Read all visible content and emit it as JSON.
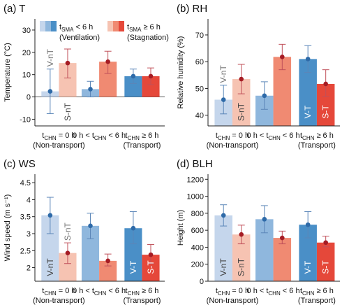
{
  "legend": {
    "ventilation": {
      "name": "t",
      "sub": "SMA",
      "rel": " < 6 h",
      "note": "(Ventilation)"
    },
    "stagnation": {
      "name": "t",
      "sub": "SMA",
      "rel": " ≥ 6 h",
      "note": "(Stagnation)"
    }
  },
  "x_groups": [
    {
      "l1_pre": "t",
      "l1_sub": "CHN",
      "l1_post": " = 0 h",
      "l2": "(Non-transport)"
    },
    {
      "l1_pre": "0 h < t",
      "l1_sub": "CHN",
      "l1_post": " < 6 h",
      "l2": ""
    },
    {
      "l1_pre": "t",
      "l1_sub": "CHN",
      "l1_post": " ≥ 6 h",
      "l2": "(Transport)"
    }
  ],
  "colors": {
    "vent_light": "#c5d6ec",
    "vent_mid": "#8fb7dd",
    "vent_dark": "#4a8fc7",
    "stag_light": "#f6c3b2",
    "stag_mid": "#f08a72",
    "stag_dark": "#e5483a",
    "vent_marker": "#2e6aa8",
    "stag_marker": "#a51c24",
    "vent_err": "#5b86b8",
    "stag_err": "#c0505a"
  },
  "chart_data": [
    {
      "type": "bar",
      "title": "(a) T",
      "ylabel": "Temperature (°C)",
      "ylim": [
        -13,
        35
      ],
      "yticks": [
        -10,
        0,
        10,
        20,
        30
      ],
      "categories": [
        "tCHN = 0 h (Non-transport)",
        "0 h < tCHN < 6 h",
        "tCHN ≥ 6 h (Transport)"
      ],
      "series": [
        {
          "name": "tSMA < 6 h (Ventilation)",
          "values": [
            2.5,
            3.5,
            9.3
          ],
          "lower": [
            -7.5,
            0.0,
            6.0
          ],
          "upper": [
            12.5,
            7.0,
            12.5
          ]
        },
        {
          "name": "tSMA ≥ 6 h (Stagnation)",
          "values": [
            15.2,
            15.8,
            9.3
          ],
          "lower": [
            8.5,
            10.5,
            5.5
          ],
          "upper": [
            21.5,
            20.5,
            13.0
          ]
        }
      ],
      "bar_labels": [
        {
          "text": "V-nT",
          "group": 0,
          "series": 0,
          "pos": "above"
        },
        {
          "text": "S-nT",
          "group": 0,
          "series": 1,
          "pos": "inside"
        },
        {
          "text": "V-T",
          "group": 2,
          "series": 0,
          "pos": "inside"
        },
        {
          "text": "S-T",
          "group": 2,
          "series": 1,
          "pos": "inside"
        }
      ]
    },
    {
      "type": "bar",
      "title": "(b) RH",
      "ylabel": "Relative humidity (%)",
      "ylim": [
        36,
        76
      ],
      "yticks": [
        40,
        50,
        60,
        70
      ],
      "categories": [
        "tCHN = 0 h (Non-transport)",
        "0 h < tCHN < 6 h",
        "tCHN ≥ 6 h (Transport)"
      ],
      "series": [
        {
          "name": "tSMA < 6 h (Ventilation)",
          "values": [
            45.8,
            47.3,
            61.0
          ],
          "lower": [
            40.5,
            42.2,
            56.0
          ],
          "upper": [
            51.2,
            52.5,
            66.0
          ]
        },
        {
          "name": "tSMA ≥ 6 h (Stagnation)",
          "values": [
            53.5,
            61.8,
            51.7
          ],
          "lower": [
            48.0,
            57.0,
            47.0
          ],
          "upper": [
            59.0,
            66.5,
            57.0
          ]
        }
      ],
      "bar_labels": [
        {
          "text": "V-nT",
          "group": 0,
          "series": 0,
          "pos": "above"
        },
        {
          "text": "S-nT",
          "group": 0,
          "series": 1,
          "pos": "inside"
        },
        {
          "text": "V-T",
          "group": 2,
          "series": 0,
          "pos": "inside"
        },
        {
          "text": "S-T",
          "group": 2,
          "series": 1,
          "pos": "inside"
        }
      ]
    },
    {
      "type": "bar",
      "title": "(c) WS",
      "ylabel": "Wind speed (m s⁻¹)",
      "ylim": [
        1.6,
        4.75
      ],
      "yticks": [
        2.0,
        2.5,
        3.0,
        3.5,
        4.0,
        4.5
      ],
      "categories": [
        "tCHN = 0 h (Non-transport)",
        "0 h < tCHN < 6 h",
        "tCHN ≥ 6 h (Transport)"
      ],
      "series": [
        {
          "name": "tSMA < 6 h (Ventilation)",
          "values": [
            3.54,
            3.23,
            3.16
          ],
          "lower": [
            3.0,
            2.85,
            2.7
          ],
          "upper": [
            4.07,
            3.6,
            3.65
          ]
        },
        {
          "name": "tSMA ≥ 6 h (Stagnation)",
          "values": [
            2.43,
            2.2,
            2.38
          ],
          "lower": [
            2.12,
            2.05,
            2.12
          ],
          "upper": [
            2.73,
            2.4,
            2.68
          ]
        }
      ],
      "bar_labels": [
        {
          "text": "V-nT",
          "group": 0,
          "series": 0,
          "pos": "inside"
        },
        {
          "text": "S-nT",
          "group": 0,
          "series": 1,
          "pos": "above"
        },
        {
          "text": "V-T",
          "group": 2,
          "series": 0,
          "pos": "inside"
        },
        {
          "text": "S-T",
          "group": 2,
          "series": 1,
          "pos": "inside"
        }
      ]
    },
    {
      "type": "bar",
      "title": "(d) BLH",
      "ylabel": "Height (m)",
      "ylim": [
        0,
        1260
      ],
      "yticks": [
        0,
        200,
        400,
        600,
        800,
        1000,
        1200
      ],
      "categories": [
        "tCHN = 0 h (Non-transport)",
        "0 h < tCHN < 6 h",
        "tCHN ≥ 6 h (Transport)"
      ],
      "series": [
        {
          "name": "tSMA < 6 h (Ventilation)",
          "values": [
            775,
            730,
            665
          ],
          "lower": [
            650,
            570,
            510
          ],
          "upper": [
            900,
            890,
            820
          ]
        },
        {
          "name": "tSMA ≥ 6 h (Stagnation)",
          "values": [
            550,
            510,
            455
          ],
          "lower": [
            440,
            440,
            405
          ],
          "upper": [
            660,
            590,
            530
          ]
        }
      ],
      "bar_labels": [
        {
          "text": "V-nT",
          "group": 0,
          "series": 0,
          "pos": "inside"
        },
        {
          "text": "S-nT",
          "group": 0,
          "series": 1,
          "pos": "inside"
        },
        {
          "text": "V-T",
          "group": 2,
          "series": 0,
          "pos": "inside"
        },
        {
          "text": "S-T",
          "group": 2,
          "series": 1,
          "pos": "inside"
        }
      ]
    }
  ]
}
